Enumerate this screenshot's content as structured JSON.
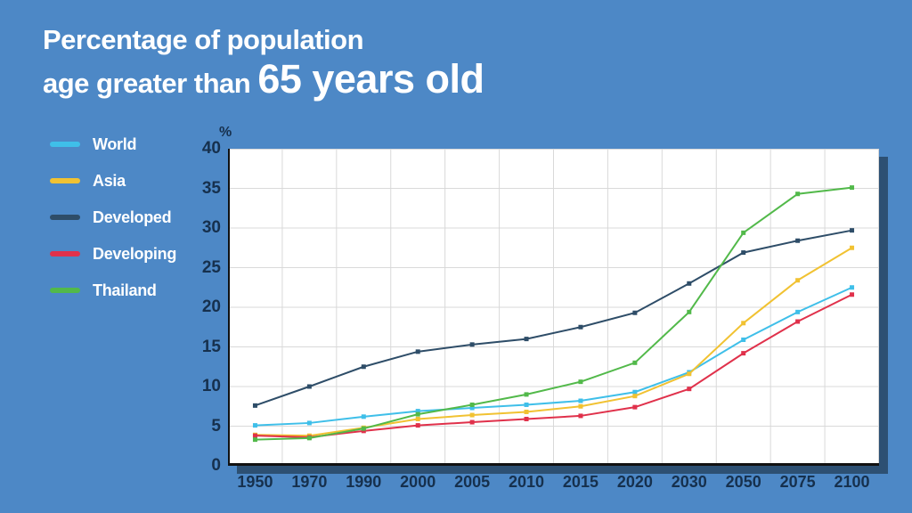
{
  "title": {
    "line1": "Percentage of population",
    "line2_prefix": "age greater than ",
    "line2_emphasis": "65 years old"
  },
  "colors": {
    "background": "#4D88C6",
    "title_text": "#FFFFFF",
    "axis_text": "#16304D",
    "plot_background": "#FFFFFF",
    "gridline": "#D9D9D9",
    "axis_line": "#111111",
    "plot_shadow": "#2D5073"
  },
  "chart_data": {
    "type": "line",
    "title": "Percentage of population age greater than 65 years old",
    "ylabel": "%",
    "xlabel": "",
    "ylim": [
      0,
      40
    ],
    "y_ticks": [
      "0",
      "5",
      "10",
      "15",
      "20",
      "25",
      "30",
      "35",
      "40"
    ],
    "grid": true,
    "legend_position": "left",
    "marker": "square",
    "categories": [
      "1950",
      "1970",
      "1990",
      "2000",
      "2005",
      "2010",
      "2015",
      "2020",
      "2030",
      "2050",
      "2075",
      "2100"
    ],
    "series": [
      {
        "name": "World",
        "color": "#3FBFE9",
        "values": [
          5.1,
          5.4,
          6.2,
          6.9,
          7.3,
          7.7,
          8.2,
          9.3,
          11.8,
          15.9,
          19.4,
          22.5
        ]
      },
      {
        "name": "Asia",
        "color": "#F1C232",
        "values": [
          3.9,
          3.8,
          4.8,
          5.9,
          6.4,
          6.8,
          7.5,
          8.8,
          11.6,
          18.0,
          23.4,
          27.5
        ]
      },
      {
        "name": "Developed",
        "color": "#2E4D68",
        "values": [
          7.6,
          10.0,
          12.5,
          14.4,
          15.3,
          16.0,
          17.5,
          19.3,
          23.0,
          26.9,
          28.4,
          29.7
        ]
      },
      {
        "name": "Developing",
        "color": "#E0314B",
        "values": [
          3.8,
          3.6,
          4.4,
          5.1,
          5.5,
          5.9,
          6.3,
          7.4,
          9.7,
          14.2,
          18.2,
          21.6
        ]
      },
      {
        "name": "Thailand",
        "color": "#52B94A",
        "values": [
          3.3,
          3.5,
          4.7,
          6.5,
          7.7,
          9.0,
          10.6,
          13.0,
          19.4,
          29.4,
          34.3,
          35.1
        ]
      }
    ]
  }
}
